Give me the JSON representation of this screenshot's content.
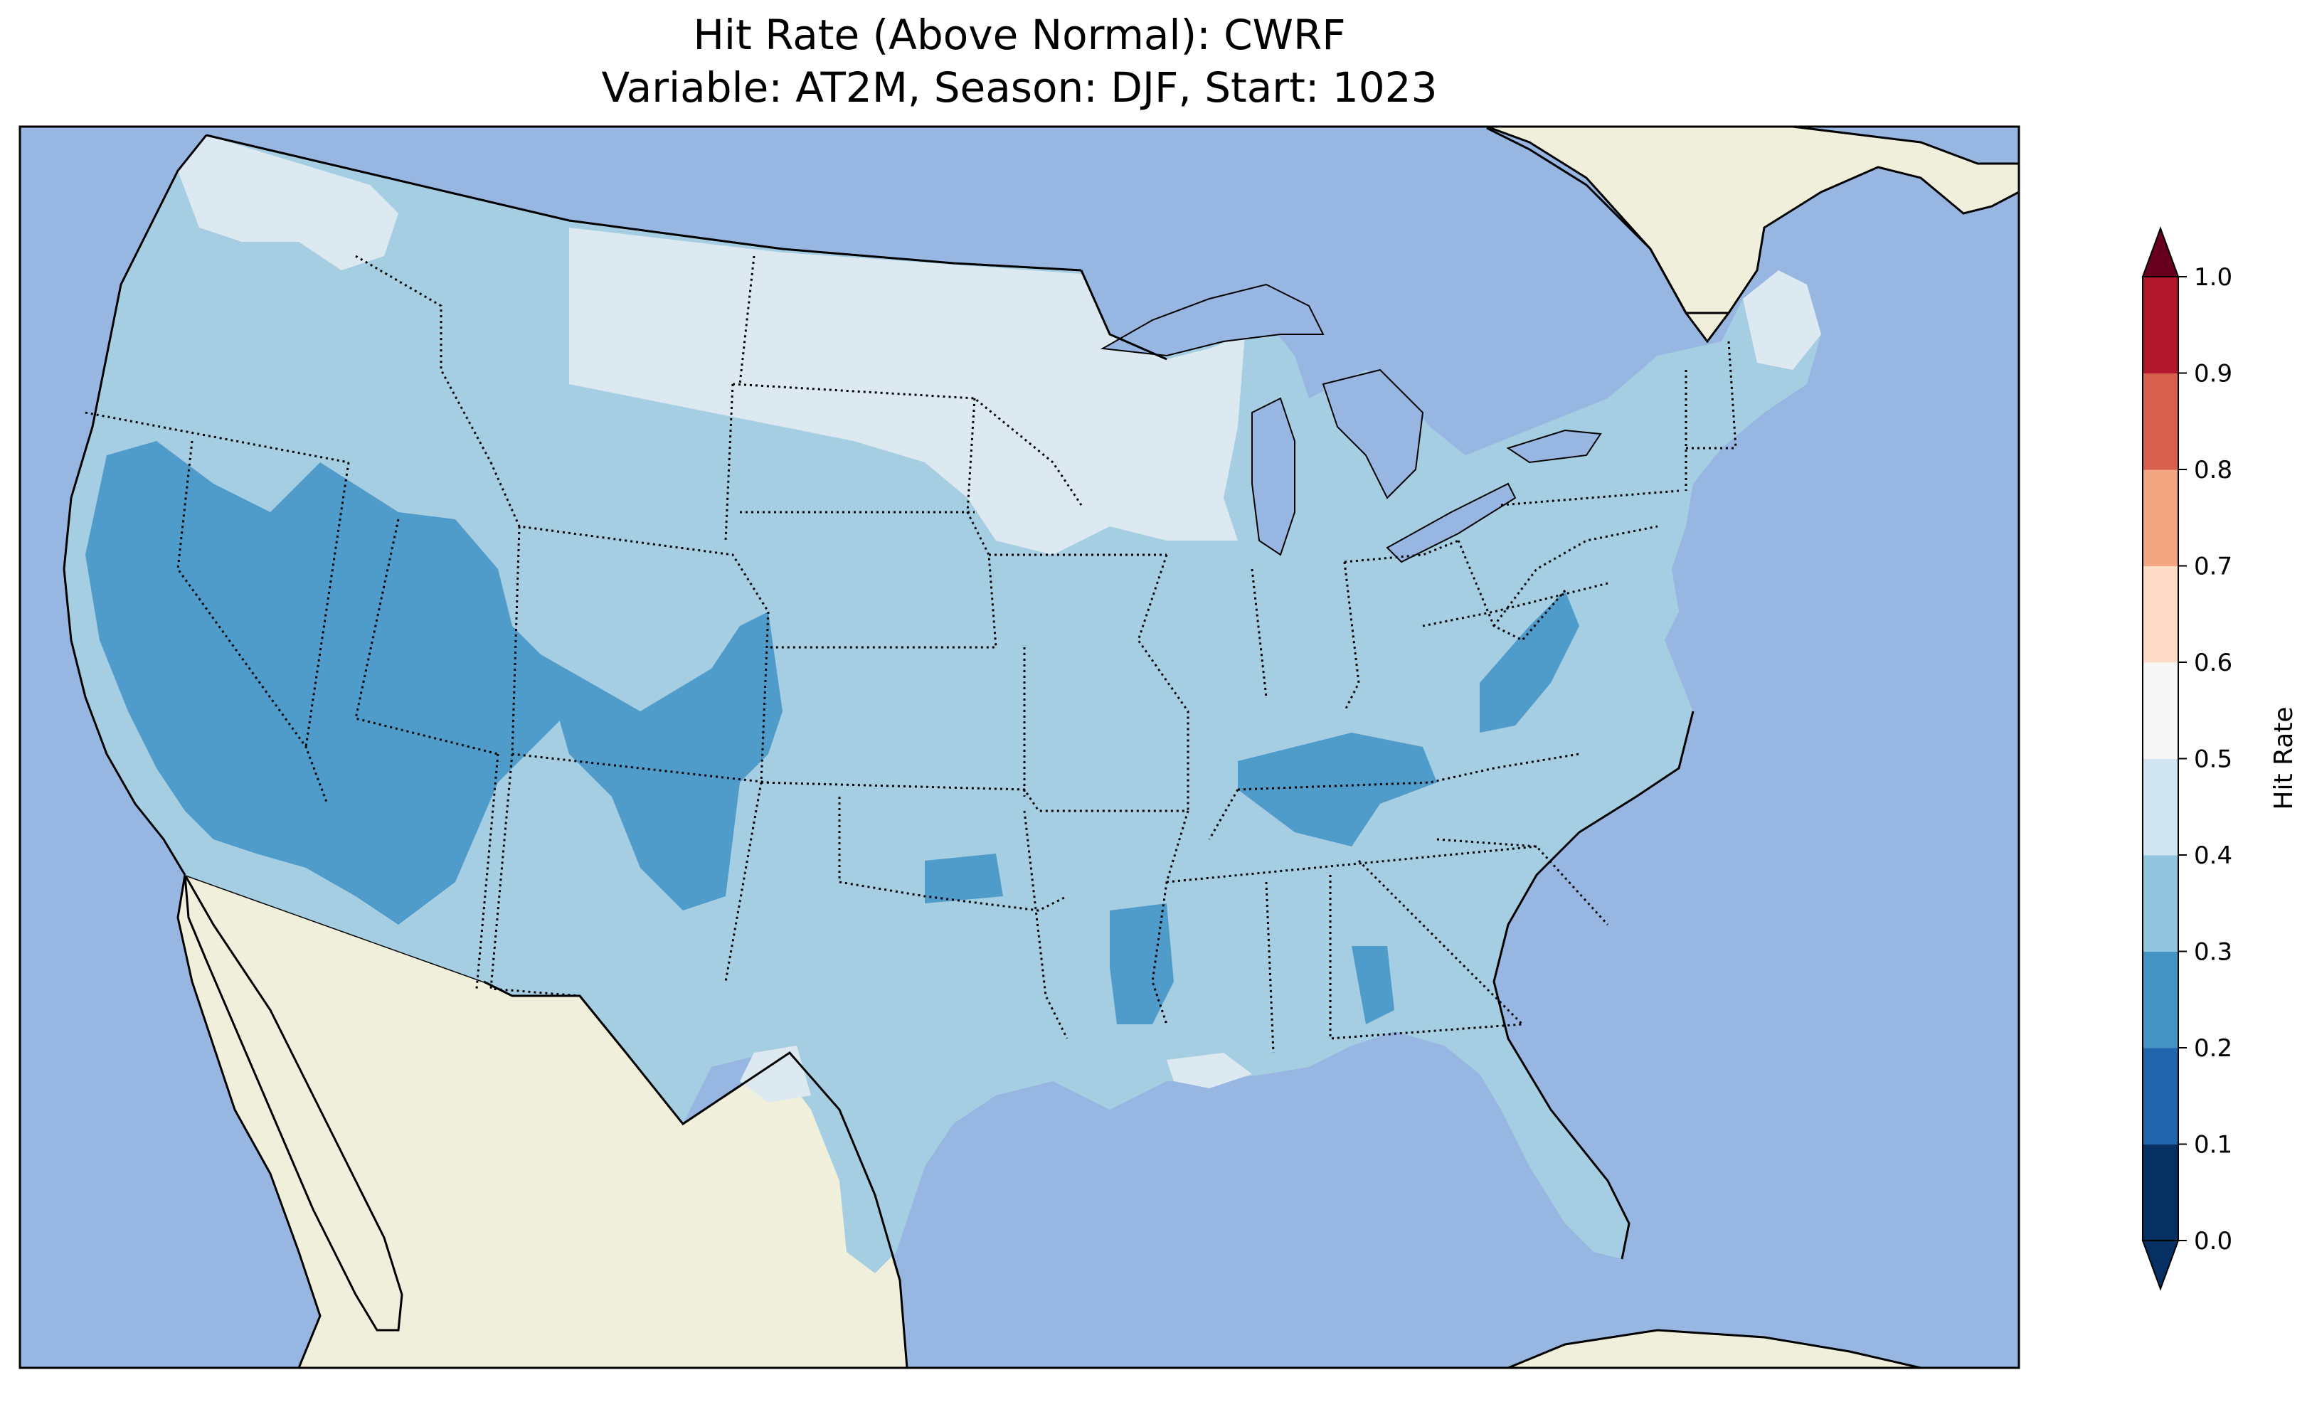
{
  "title_line1": "Hit Rate (Above Normal): CWRF",
  "title_line2": "Variable: AT2M, Season: DJF, Start: 1023",
  "colorbar": {
    "label": "Hit Rate",
    "ticks": [
      "0.0",
      "0.1",
      "0.2",
      "0.3",
      "0.4",
      "0.5",
      "0.6",
      "0.7",
      "0.8",
      "0.9",
      "1.0"
    ],
    "colors": [
      "#053061",
      "#2166ac",
      "#4393c3",
      "#92c5de",
      "#d1e5f0",
      "#f7f7f7",
      "#fddbc7",
      "#f4a582",
      "#d6604d",
      "#b2182b",
      "#67001f"
    ]
  },
  "map_colors": {
    "ocean": "#97b6e1",
    "land": "#efefdb",
    "level_02_03": "#4f9bc9",
    "level_03_04": "#a6cee3",
    "level_04_05": "#dde9f1"
  },
  "chart_data": {
    "type": "heatmap",
    "title": "Hit Rate (Above Normal): CWRF\nVariable: AT2M, Season: DJF, Start: 1023",
    "variable": "AT2M",
    "season": "DJF",
    "start": "1023",
    "model": "CWRF",
    "colorbar_label": "Hit Rate",
    "levels": [
      0.0,
      0.1,
      0.2,
      0.3,
      0.4,
      0.5,
      0.6,
      0.7,
      0.8,
      0.9,
      1.0
    ],
    "regions": [
      {
        "region": "Northern Plains / Upper Midwest (MT, ND, MN, WI)",
        "range": [
          0.4,
          0.5
        ]
      },
      {
        "region": "Pacific Northwest interior",
        "range": [
          0.4,
          0.5
        ]
      },
      {
        "region": "Northern Maine",
        "range": [
          0.4,
          0.5
        ]
      },
      {
        "region": "Most of CONUS (Plains, Southeast, Northeast, Texas, Pacific NW)",
        "range": [
          0.3,
          0.4
        ]
      },
      {
        "region": "Great Basin / Southwest (NV, UT, AZ, southern CA)",
        "range": [
          0.2,
          0.3
        ]
      },
      {
        "region": "Colorado / New Mexico",
        "range": [
          0.2,
          0.3
        ]
      },
      {
        "region": "Tennessee / Appalachians (WV)",
        "range": [
          0.2,
          0.3
        ]
      },
      {
        "region": "Lower Mississippi Valley",
        "range": [
          0.2,
          0.3
        ]
      }
    ]
  }
}
